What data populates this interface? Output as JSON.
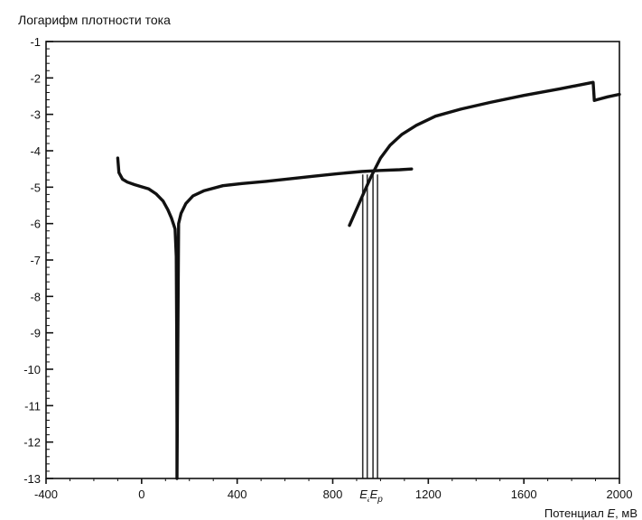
{
  "chart_data": {
    "type": "line",
    "title": "Логарифм плотности тока",
    "xlabel": "Потенциал E, мВ",
    "ylabel": "",
    "xlim": [
      -400,
      2000
    ],
    "ylim": [
      -13,
      -1
    ],
    "x_ticks": [
      -400,
      0,
      400,
      800,
      1200,
      1600,
      2000
    ],
    "y_ticks": [
      -1,
      -2,
      -3,
      -4,
      -5,
      -6,
      -7,
      -8,
      -9,
      -10,
      -11,
      -12,
      -13
    ],
    "grid": false,
    "series": [
      {
        "points": [
          [
            -100,
            -4.2
          ],
          [
            -95,
            -4.6
          ],
          [
            -80,
            -4.78
          ],
          [
            -60,
            -4.86
          ],
          [
            -30,
            -4.93
          ],
          [
            0,
            -4.99
          ],
          [
            30,
            -5.05
          ],
          [
            60,
            -5.18
          ],
          [
            90,
            -5.38
          ],
          [
            110,
            -5.62
          ],
          [
            125,
            -5.85
          ],
          [
            135,
            -6.05
          ],
          [
            140,
            -6.15
          ],
          [
            145,
            -6.9
          ],
          [
            147,
            -9.0
          ],
          [
            148,
            -11.5
          ],
          [
            148,
            -13.0
          ],
          [
            155,
            -6.0
          ],
          [
            165,
            -5.72
          ],
          [
            185,
            -5.45
          ],
          [
            215,
            -5.24
          ],
          [
            260,
            -5.1
          ],
          [
            340,
            -4.96
          ],
          [
            420,
            -4.9
          ],
          [
            520,
            -4.84
          ],
          [
            620,
            -4.77
          ],
          [
            720,
            -4.7
          ],
          [
            820,
            -4.63
          ],
          [
            920,
            -4.57
          ],
          [
            1000,
            -4.54
          ],
          [
            1080,
            -4.52
          ],
          [
            1130,
            -4.5
          ]
        ]
      },
      {
        "points": [
          [
            870,
            -6.05
          ],
          [
            920,
            -5.3
          ],
          [
            960,
            -4.72
          ],
          [
            1000,
            -4.2
          ],
          [
            1040,
            -3.85
          ],
          [
            1090,
            -3.55
          ],
          [
            1150,
            -3.3
          ],
          [
            1230,
            -3.05
          ],
          [
            1340,
            -2.85
          ],
          [
            1460,
            -2.67
          ],
          [
            1600,
            -2.48
          ],
          [
            1750,
            -2.3
          ],
          [
            1890,
            -2.12
          ],
          [
            1895,
            -2.62
          ],
          [
            1905,
            -2.6
          ],
          [
            1950,
            -2.52
          ],
          [
            2000,
            -2.45
          ]
        ]
      }
    ],
    "markers": [
      {
        "label": "a",
        "x": 935
      },
      {
        "label": "p",
        "x": 978
      }
    ]
  }
}
